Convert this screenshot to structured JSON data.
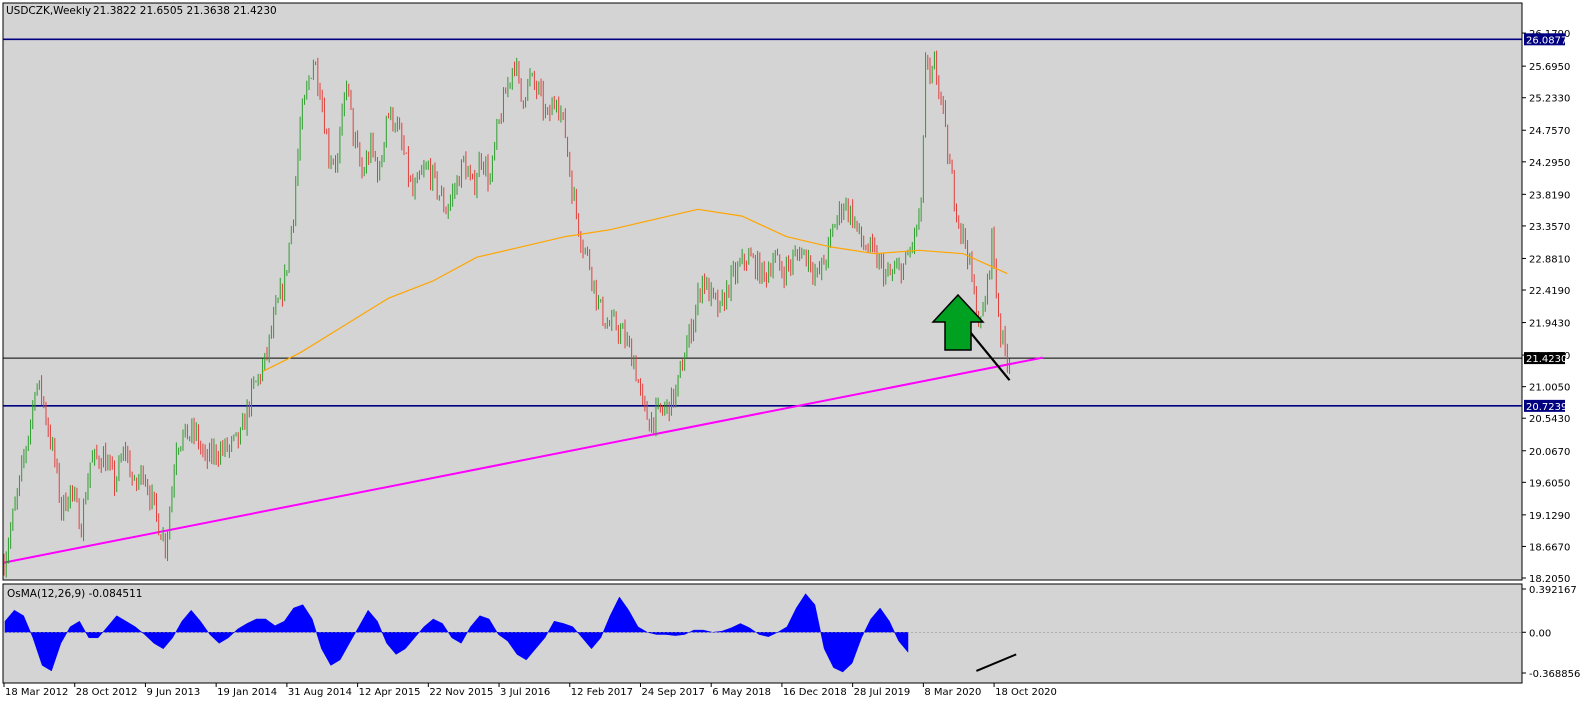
{
  "chart_data": {
    "type": "candlestick",
    "header": {
      "symbol": "USDCZK,Weekly",
      "ohlc": "21.3822 21.6505 21.3638 21.4230"
    },
    "price_axis": {
      "ylim": [
        18.205,
        26.18
      ],
      "ticks": [
        "26.1790",
        "25.6950",
        "25.2330",
        "24.7570",
        "24.2950",
        "23.8190",
        "23.3570",
        "22.8810",
        "22.4190",
        "21.9430",
        "21.4670",
        "21.0050",
        "20.5430",
        "20.0670",
        "19.6050",
        "19.1290",
        "18.6670",
        "18.2050"
      ],
      "tick_values": [
        26.179,
        25.695,
        25.233,
        24.757,
        24.295,
        23.819,
        23.357,
        22.881,
        22.419,
        21.943,
        21.467,
        21.005,
        20.543,
        20.067,
        19.605,
        19.129,
        18.667,
        18.205
      ]
    },
    "time_axis": {
      "labels": [
        "18 Mar 2012",
        "28 Oct 2012",
        "9 Jun 2013",
        "19 Jan 2014",
        "31 Aug 2014",
        "12 Apr 2015",
        "22 Nov 2015",
        "3 Jul 2016",
        "12 Feb 2017",
        "24 Sep 2017",
        "6 May 2018",
        "16 Dec 2018",
        "28 Jul 2019",
        "8 Mar 2020",
        "18 Oct 2020"
      ],
      "start": "18 Mar 2012",
      "weeks_per_label": 32
    },
    "horizontal_levels": [
      {
        "value": 26.0877,
        "label": "26.0877",
        "color": "#000080"
      },
      {
        "value": 20.7239,
        "label": "20.7239",
        "color": "#000080"
      },
      {
        "value": 21.423,
        "label": "21.4230",
        "color": "#000000"
      }
    ],
    "price_path": [
      [
        "18 Mar 2012",
        18.45
      ],
      [
        "29 Apr 2012",
        19.4
      ],
      [
        "17 Jun 2012",
        20.7
      ],
      [
        "24 Jun 2012",
        21.05
      ],
      [
        "15 Jul 2012",
        20.9
      ],
      [
        "26 Aug 2012",
        19.9
      ],
      [
        "16 Sep 2012",
        19.2
      ],
      [
        "14 Oct 2012",
        19.5
      ],
      [
        "18 Nov 2012",
        19.0
      ],
      [
        "16 Dec 2012",
        19.9
      ],
      [
        "27 Jan 2013",
        20.0
      ],
      [
        "3 Mar 2013",
        19.6
      ],
      [
        "7 Apr 2013",
        20.1
      ],
      [
        "5 May 2013",
        19.5
      ],
      [
        "2 Jun 2013",
        19.8
      ],
      [
        "7 Jul 2013",
        19.2
      ],
      [
        "11 Aug 2013",
        18.7
      ],
      [
        "25 Aug 2013",
        19.2
      ],
      [
        "15 Sep 2013",
        20.2
      ],
      [
        "20 Oct 2013",
        20.3
      ],
      [
        "17 Nov 2013",
        20.3
      ],
      [
        "15 Dec 2013",
        19.9
      ],
      [
        "12 Jan 2014",
        20.05
      ],
      [
        "2 Mar 2014",
        20.1
      ],
      [
        "6 Apr 2014",
        20.25
      ],
      [
        "11 May 2014",
        20.9
      ],
      [
        "22 Jun 2014",
        21.35
      ],
      [
        "27 Jul 2014",
        22.1
      ],
      [
        "24 Aug 2014",
        22.55
      ],
      [
        "21 Sep 2014",
        23.6
      ],
      [
        "12 Oct 2014",
        24.8
      ],
      [
        "9 Nov 2014",
        25.5
      ],
      [
        "23 Nov 2014",
        25.8
      ],
      [
        "14 Dec 2014",
        25.4
      ],
      [
        "11 Jan 2015",
        24.4
      ],
      [
        "8 Feb 2015",
        24.3
      ],
      [
        "8 Mar 2015",
        25.5
      ],
      [
        "29 Mar 2015",
        24.7
      ],
      [
        "26 Apr 2015",
        24.1
      ],
      [
        "24 May 2015",
        24.5
      ],
      [
        "21 Jun 2015",
        24.1
      ],
      [
        "12 Jul 2015",
        25.0
      ],
      [
        "9 Aug 2015",
        24.9
      ],
      [
        "6 Sep 2015",
        24.4
      ],
      [
        "4 Oct 2015",
        23.8
      ],
      [
        "1 Nov 2015",
        24.1
      ],
      [
        "22 Nov 2015",
        24.2
      ],
      [
        "20 Dec 2015",
        23.9
      ],
      [
        "17 Jan 2016",
        23.6
      ],
      [
        "14 Feb 2016",
        23.9
      ],
      [
        "13 Mar 2016",
        24.3
      ],
      [
        "10 Apr 2016",
        23.9
      ],
      [
        "8 May 2016",
        24.4
      ],
      [
        "5 Jun 2016",
        24.0
      ],
      [
        "26 Jun 2016",
        24.7
      ],
      [
        "24 Jul 2016",
        25.3
      ],
      [
        "21 Aug 2016",
        25.8
      ],
      [
        "11 Sep 2016",
        25.2
      ],
      [
        "9 Oct 2016",
        25.5
      ],
      [
        "6 Nov 2016",
        25.3
      ],
      [
        "4 Dec 2016",
        24.9
      ],
      [
        "1 Jan 2017",
        25.3
      ],
      [
        "29 Jan 2017",
        24.7
      ],
      [
        "19 Feb 2017",
        23.9
      ],
      [
        "19 Mar 2017",
        23.2
      ],
      [
        "16 Apr 2017",
        22.8
      ],
      [
        "14 May 2017",
        22.2
      ],
      [
        "11 Jun 2017",
        21.9
      ],
      [
        "9 Jul 2017",
        21.9
      ],
      [
        "6 Aug 2017",
        21.7
      ],
      [
        "3 Sep 2017",
        21.4
      ],
      [
        "1 Oct 2017",
        20.7
      ],
      [
        "22 Oct 2017",
        20.5
      ],
      [
        "19 Nov 2017",
        20.6
      ],
      [
        "17 Dec 2017",
        20.7
      ],
      [
        "14 Jan 2018",
        20.9
      ],
      [
        "11 Feb 2018",
        21.5
      ],
      [
        "11 Mar 2018",
        22.0
      ],
      [
        "8 Apr 2018",
        22.6
      ],
      [
        "6 May 2018",
        22.3
      ],
      [
        "3 Jun 2018",
        22.1
      ],
      [
        "1 Jul 2018",
        22.5
      ],
      [
        "29 Jul 2018",
        22.7
      ],
      [
        "26 Aug 2018",
        22.9
      ],
      [
        "23 Sep 2018",
        22.8
      ],
      [
        "21 Oct 2018",
        22.6
      ],
      [
        "18 Nov 2018",
        22.9
      ],
      [
        "16 Dec 2018",
        22.7
      ],
      [
        "13 Jan 2019",
        22.8
      ],
      [
        "10 Feb 2019",
        23.0
      ],
      [
        "10 Mar 2019",
        22.9
      ],
      [
        "7 Apr 2019",
        22.6
      ],
      [
        "5 May 2019",
        22.9
      ],
      [
        "2 Jun 2019",
        23.4
      ],
      [
        "30 Jun 2019",
        23.7
      ],
      [
        "28 Jul 2019",
        23.5
      ],
      [
        "25 Aug 2019",
        23.1
      ],
      [
        "22 Sep 2019",
        23.0
      ],
      [
        "20 Oct 2019",
        22.8
      ],
      [
        "17 Nov 2019",
        22.6
      ],
      [
        "15 Dec 2019",
        22.7
      ],
      [
        "12 Jan 2020",
        22.8
      ],
      [
        "9 Feb 2020",
        23.2
      ],
      [
        "1 Mar 2020",
        23.6
      ],
      [
        "15 Mar 2020",
        25.8
      ],
      [
        "29 Mar 2020",
        25.4
      ],
      [
        "12 Apr 2020",
        25.7
      ],
      [
        "3 May 2020",
        25.2
      ],
      [
        "24 May 2020",
        24.4
      ],
      [
        "14 Jun 2020",
        23.8
      ],
      [
        "5 Jul 2020",
        23.3
      ],
      [
        "26 Jul 2020",
        23.0
      ],
      [
        "16 Aug 2020",
        22.3
      ],
      [
        "6 Sep 2020",
        21.9
      ],
      [
        "27 Sep 2020",
        22.5
      ],
      [
        "11 Oct 2020",
        23.2
      ],
      [
        "25 Oct 2020",
        22.4
      ],
      [
        "8 Nov 2020",
        21.8
      ],
      [
        "22 Nov 2020",
        21.5
      ],
      [
        "6 Dec 2020",
        21.4
      ]
    ],
    "moving_average": {
      "color": "#FFA500",
      "points": [
        [
          "16 Jun 2014",
          21.23
        ],
        [
          "12 Oct 2014",
          21.5
        ],
        [
          "1 Mar 2015",
          21.9
        ],
        [
          "19 Jul 2015",
          22.3
        ],
        [
          "6 Dec 2015",
          22.55
        ],
        [
          "24 Apr 2016",
          22.9
        ],
        [
          "11 Sep 2016",
          23.05
        ],
        [
          "29 Jan 2017",
          23.2
        ],
        [
          "18 Jun 2017",
          23.3
        ],
        [
          "5 Nov 2017",
          23.45
        ],
        [
          "25 Mar 2018",
          23.6
        ],
        [
          "12 Aug 2018",
          23.5
        ],
        [
          "30 Dec 2018",
          23.2
        ],
        [
          "19 May 2019",
          23.05
        ],
        [
          "6 Oct 2019",
          22.95
        ],
        [
          "23 Feb 2020",
          23.0
        ],
        [
          "12 Jul 2020",
          22.95
        ],
        [
          "29 Nov 2020",
          22.66
        ]
      ]
    },
    "trendlines": [
      {
        "color": "#FF00FF",
        "from": [
          "18 Mar 2012",
          18.43
        ],
        "to": [
          "21 Mar 2021",
          21.43
        ]
      },
      {
        "color": "#000000",
        "from": [
          "26 Jul 2020",
          21.85
        ],
        "to": [
          "6 Dec 2020",
          21.1
        ]
      }
    ],
    "arrow": {
      "direction": "up",
      "color": "#00A020"
    },
    "oscillator": {
      "label": "OsMA(12,26,9) -0.084511",
      "ylim": [
        -0.368856,
        0.392167
      ],
      "ticks": [
        "0.392167",
        "0.00",
        "-0.368856"
      ],
      "tick_values": [
        0.392167,
        0.0,
        -0.368856
      ],
      "color": "#0000FF",
      "values": [
        0.1,
        0.2,
        0.15,
        -0.05,
        -0.3,
        -0.35,
        -0.1,
        0.05,
        0.1,
        -0.05,
        -0.05,
        0.05,
        0.15,
        0.1,
        0.05,
        -0.02,
        -0.1,
        -0.15,
        -0.05,
        0.1,
        0.2,
        0.1,
        -0.02,
        -0.1,
        -0.05,
        0.03,
        0.08,
        0.12,
        0.12,
        0.06,
        0.1,
        0.22,
        0.25,
        0.12,
        -0.15,
        -0.3,
        -0.25,
        -0.1,
        0.05,
        0.2,
        0.1,
        -0.1,
        -0.2,
        -0.15,
        -0.05,
        0.05,
        0.12,
        0.08,
        -0.05,
        -0.1,
        0.05,
        0.15,
        0.12,
        -0.02,
        -0.08,
        -0.2,
        -0.25,
        -0.15,
        -0.05,
        0.1,
        0.08,
        0.05,
        -0.05,
        -0.15,
        -0.05,
        0.15,
        0.32,
        0.2,
        0.05,
        0.0,
        -0.02,
        -0.02,
        -0.03,
        -0.02,
        0.02,
        0.02,
        0.0,
        0.01,
        0.04,
        0.08,
        0.04,
        -0.02,
        -0.04,
        0.0,
        0.05,
        0.22,
        0.35,
        0.25,
        -0.15,
        -0.32,
        -0.36,
        -0.28,
        -0.05,
        0.12,
        0.22,
        0.1,
        -0.08,
        -0.18
      ]
    },
    "divergence_line": {
      "color": "#000000",
      "from": [
        "23 Aug 2020",
        -0.35
      ],
      "to": [
        "27 Dec 2020",
        -0.2
      ]
    }
  }
}
